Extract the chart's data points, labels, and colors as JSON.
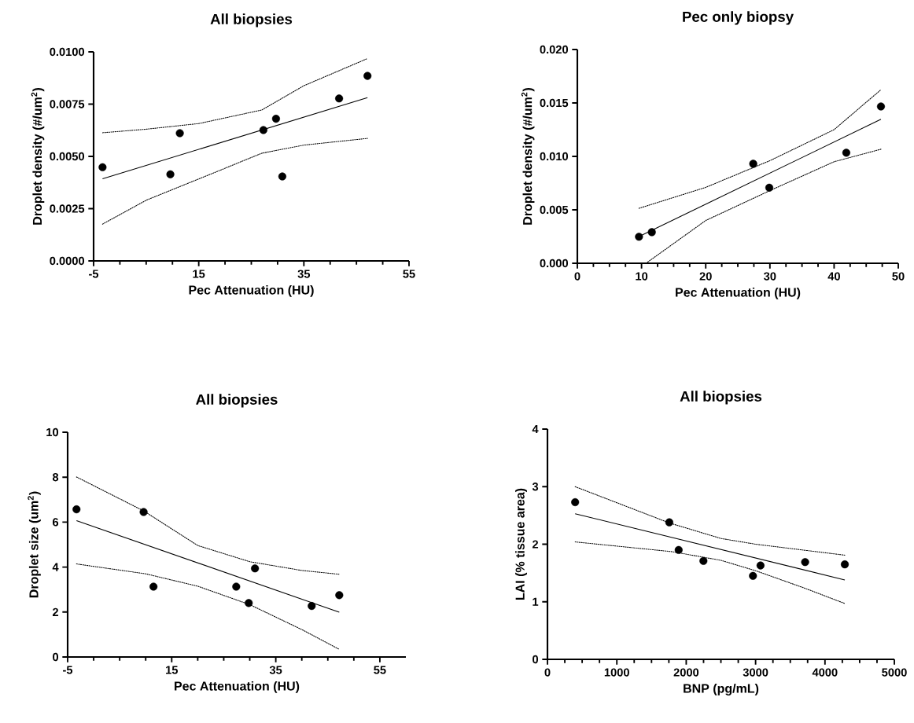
{
  "chart_data": [
    {
      "type": "scatter",
      "title": "All biopsies",
      "xlabel": "Pec Attenuation (HU)",
      "ylabel": "Droplet density (#/um$^{2}$)",
      "xlim": [
        -5,
        55
      ],
      "ylim": [
        0,
        0.01
      ],
      "xticks": [
        -5,
        15,
        35,
        55
      ],
      "yticks": [
        {
          "value": 0,
          "label": "0.0000"
        },
        {
          "value": 0.0025,
          "label": "0.0025"
        },
        {
          "value": 0.005,
          "label": "0.0050"
        },
        {
          "value": 0.0075,
          "label": "0.0075"
        },
        {
          "value": 0.01,
          "label": "0.0100"
        }
      ],
      "series": [
        {
          "type": "scatter",
          "color": "#000000",
          "marker": "circle",
          "x": [
            -3.3,
            9.6,
            11.4,
            27.3,
            29.7,
            30.9,
            41.7,
            47.1
          ],
          "values": [
            0.00448,
            0.00414,
            0.00611,
            0.00626,
            0.0068,
            0.00404,
            0.00777,
            0.00885
          ]
        },
        {
          "type": "line",
          "color": "#000000",
          "line_style": "solid",
          "x": [
            -3.3,
            47.1
          ],
          "values": [
            0.00393,
            0.00781
          ]
        },
        {
          "type": "line",
          "color": "#000000",
          "line_style": "dotted",
          "x": [
            -3.3,
            5,
            15,
            27,
            35,
            47.1
          ],
          "values": [
            0.00613,
            0.0063,
            0.00657,
            0.00722,
            0.00838,
            0.00968
          ]
        },
        {
          "type": "line",
          "color": "#000000",
          "line_style": "dotted",
          "x": [
            -3.3,
            5,
            15,
            27,
            35,
            47.1
          ],
          "values": [
            0.00176,
            0.0029,
            0.00392,
            0.00515,
            0.00554,
            0.00586
          ]
        }
      ]
    },
    {
      "type": "scatter",
      "title": "Pec only biopsy",
      "xlabel": "Pec Attenuation (HU)",
      "ylabel": "Droplet density (#/um$^{2}$)",
      "xlim": [
        0,
        50
      ],
      "ylim": [
        0,
        0.02
      ],
      "xticks": [
        0,
        10,
        20,
        30,
        40,
        50
      ],
      "yticks": [
        {
          "value": 0,
          "label": "0.000"
        },
        0.005,
        {
          "value": 0.01,
          "label": "0.010"
        },
        0.015,
        {
          "value": 0.02,
          "label": "0.020"
        }
      ],
      "series": [
        {
          "type": "scatter",
          "color": "#000000",
          "marker": "circle",
          "x": [
            9.6,
            11.6,
            27.4,
            29.9,
            41.9,
            47.3
          ],
          "values": [
            0.00248,
            0.00291,
            0.00931,
            0.00707,
            0.01034,
            0.01467
          ]
        },
        {
          "type": "line",
          "color": "#000000",
          "line_style": "solid",
          "x": [
            9.6,
            47.3
          ],
          "values": [
            0.0025,
            0.01347
          ]
        },
        {
          "type": "line",
          "color": "#000000",
          "line_style": "dotted",
          "x": [
            9.6,
            20,
            30,
            40,
            47.3
          ],
          "values": [
            0.00514,
            0.0071,
            0.0096,
            0.0125,
            0.01624
          ]
        },
        {
          "type": "line",
          "color": "#000000",
          "line_style": "dotted",
          "x": [
            10.7,
            20,
            30,
            40,
            47.3
          ],
          "values": [
            0,
            0.004,
            0.0068,
            0.0095,
            0.01067
          ]
        }
      ]
    },
    {
      "type": "scatter",
      "title": "All biopsies",
      "xlabel": "Pec Attenuation (HU)",
      "ylabel": "Droplet size (um$^{2}$)",
      "xlim": [
        -5,
        60
      ],
      "ylim": [
        0,
        10
      ],
      "xticks": [
        -5,
        15,
        35,
        55
      ],
      "yticks": [
        0,
        2,
        4,
        6,
        8,
        10
      ],
      "series": [
        {
          "type": "scatter",
          "color": "#000000",
          "marker": "circle",
          "x": [
            -3.3,
            9.6,
            11.5,
            27.4,
            29.8,
            31.0,
            41.9,
            47.2
          ],
          "values": [
            6.57,
            6.45,
            3.13,
            3.13,
            2.4,
            3.94,
            2.27,
            2.75
          ]
        },
        {
          "type": "line",
          "color": "#000000",
          "line_style": "solid",
          "x": [
            -3.3,
            47.2
          ],
          "values": [
            6.07,
            1.99
          ]
        },
        {
          "type": "line",
          "color": "#000000",
          "line_style": "dotted",
          "x": [
            -3.3,
            9.6,
            20,
            30,
            40,
            47.2
          ],
          "values": [
            8.01,
            6.5,
            4.96,
            4.24,
            3.85,
            3.68
          ]
        },
        {
          "type": "line",
          "color": "#000000",
          "line_style": "dotted",
          "x": [
            -3.3,
            10,
            20,
            30,
            40,
            47.2
          ],
          "values": [
            4.14,
            3.7,
            3.15,
            2.33,
            1.22,
            0.34
          ]
        }
      ]
    },
    {
      "type": "scatter",
      "title": "All biopsies",
      "xlabel": "BNP (pg/mL)",
      "ylabel": "LAI (% tissue area)",
      "xlim": [
        0,
        5000
      ],
      "ylim": [
        0,
        4
      ],
      "xticks": [
        0,
        1000,
        2000,
        3000,
        4000,
        5000
      ],
      "yticks": [
        0,
        1,
        2,
        3,
        4
      ],
      "series": [
        {
          "type": "scatter",
          "color": "#000000",
          "marker": "circle",
          "x": [
            399,
            1756,
            1891,
            2248,
            2962,
            3071,
            3714,
            4286
          ],
          "values": [
            2.73,
            2.38,
            1.9,
            1.71,
            1.45,
            1.63,
            1.69,
            1.65
          ]
        },
        {
          "type": "line",
          "color": "#000000",
          "line_style": "solid",
          "x": [
            399,
            4286
          ],
          "values": [
            2.53,
            1.38
          ]
        },
        {
          "type": "line",
          "color": "#000000",
          "line_style": "dotted",
          "x": [
            399,
            1756,
            2500,
            3000,
            4286
          ],
          "values": [
            3.0,
            2.37,
            2.1,
            2.0,
            1.81
          ]
        },
        {
          "type": "line",
          "color": "#000000",
          "line_style": "dotted",
          "x": [
            399,
            1800,
            2500,
            3000,
            3700,
            4286
          ],
          "values": [
            2.04,
            1.87,
            1.72,
            1.54,
            1.24,
            0.97
          ]
        }
      ]
    }
  ]
}
